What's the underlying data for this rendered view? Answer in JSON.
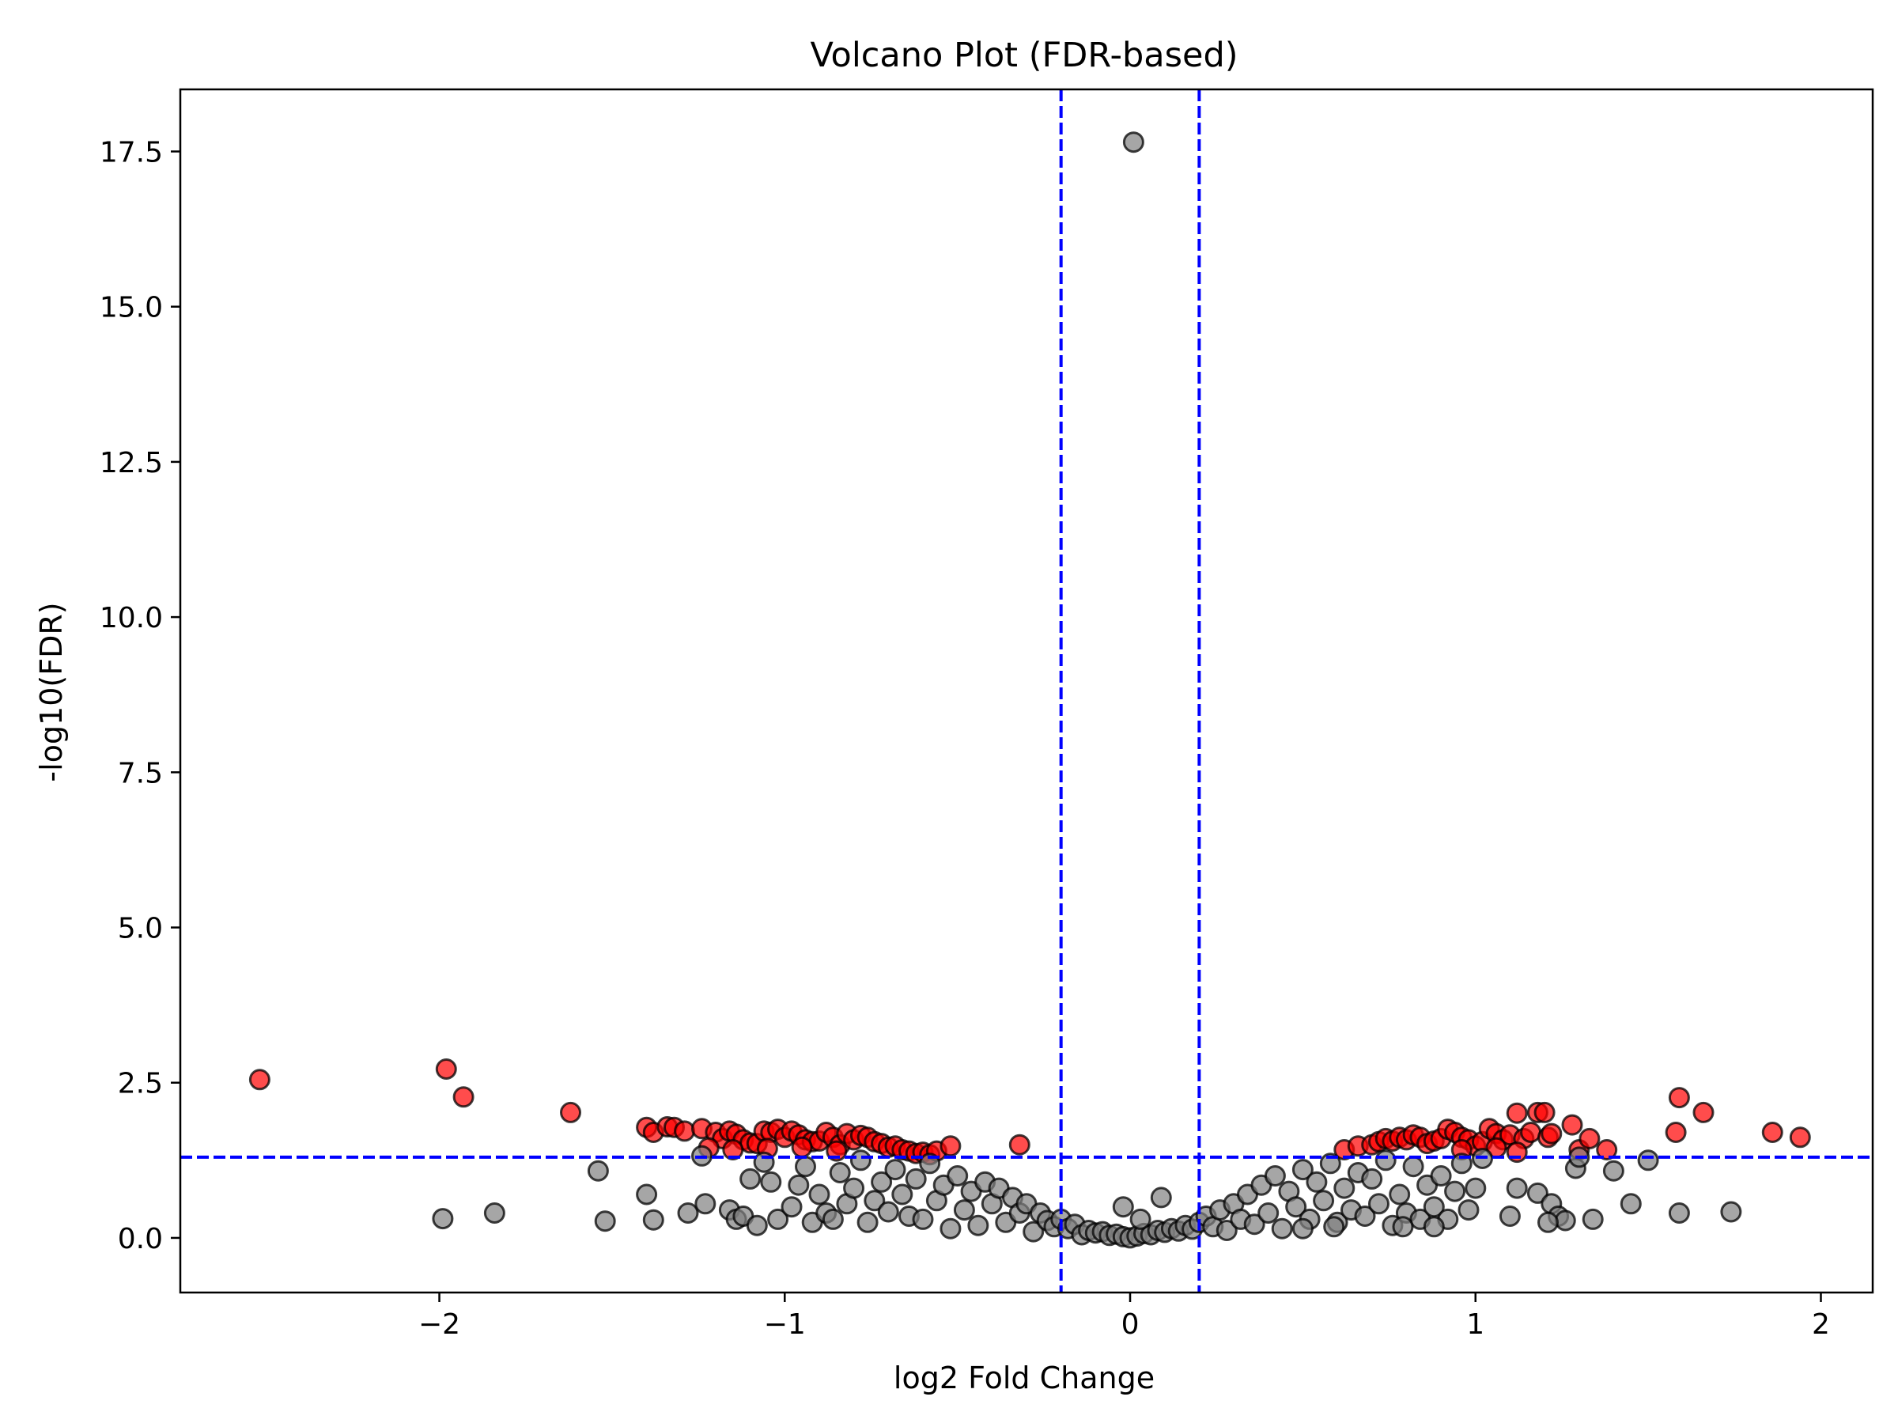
{
  "chart_data": {
    "type": "scatter",
    "title": "Volcano Plot (FDR-based)",
    "xlabel": "log2 Fold Change",
    "ylabel": "-log10(FDR)",
    "xlim": [
      -2.75,
      2.15
    ],
    "ylim": [
      -0.88,
      18.5
    ],
    "x_ticks": [
      -2,
      -1,
      0,
      1,
      2
    ],
    "x_tick_labels": [
      "−2",
      "−1",
      "0",
      "1",
      "2"
    ],
    "y_ticks": [
      0.0,
      2.5,
      5.0,
      7.5,
      10.0,
      12.5,
      15.0,
      17.5
    ],
    "y_tick_labels": [
      "0.0",
      "2.5",
      "5.0",
      "7.5",
      "10.0",
      "12.5",
      "15.0",
      "17.5"
    ],
    "grid": false,
    "legend": "none",
    "thresholds": {
      "log2fc": [
        -0.2,
        0.2
      ],
      "neg_log10_fdr": 1.3
    },
    "colors": {
      "significant": "#ff0000",
      "not_significant": "#808080",
      "threshold_line": "#0000ff",
      "marker_edge": "#000000"
    },
    "series": [
      {
        "status": "significant",
        "points": [
          [
            -2.52,
            2.55
          ],
          [
            -1.98,
            2.72
          ],
          [
            -1.93,
            2.27
          ],
          [
            -1.62,
            2.02
          ],
          [
            -1.4,
            1.78
          ],
          [
            -1.38,
            1.7
          ],
          [
            -1.34,
            1.79
          ],
          [
            -1.32,
            1.78
          ],
          [
            -1.29,
            1.72
          ],
          [
            -1.24,
            1.76
          ],
          [
            -1.2,
            1.7
          ],
          [
            -1.18,
            1.6
          ],
          [
            -1.16,
            1.72
          ],
          [
            -1.14,
            1.67
          ],
          [
            -1.12,
            1.58
          ],
          [
            -1.1,
            1.53
          ],
          [
            -1.08,
            1.52
          ],
          [
            -1.06,
            1.72
          ],
          [
            -1.04,
            1.7
          ],
          [
            -1.02,
            1.75
          ],
          [
            -1.0,
            1.62
          ],
          [
            -0.98,
            1.72
          ],
          [
            -0.96,
            1.66
          ],
          [
            -0.94,
            1.58
          ],
          [
            -0.92,
            1.55
          ],
          [
            -0.9,
            1.56
          ],
          [
            -0.88,
            1.7
          ],
          [
            -0.86,
            1.62
          ],
          [
            -0.84,
            1.5
          ],
          [
            -0.82,
            1.68
          ],
          [
            -0.8,
            1.58
          ],
          [
            -0.78,
            1.65
          ],
          [
            -0.76,
            1.62
          ],
          [
            -0.74,
            1.55
          ],
          [
            -0.72,
            1.52
          ],
          [
            -0.7,
            1.46
          ],
          [
            -0.68,
            1.48
          ],
          [
            -0.66,
            1.42
          ],
          [
            -0.64,
            1.4
          ],
          [
            -0.62,
            1.36
          ],
          [
            -0.6,
            1.38
          ],
          [
            -0.58,
            1.34
          ],
          [
            -0.56,
            1.4
          ],
          [
            -0.52,
            1.48
          ],
          [
            -1.22,
            1.45
          ],
          [
            -1.15,
            1.42
          ],
          [
            -1.05,
            1.44
          ],
          [
            -0.95,
            1.46
          ],
          [
            -0.85,
            1.4
          ],
          [
            -0.32,
            1.5
          ],
          [
            0.62,
            1.42
          ],
          [
            0.66,
            1.48
          ],
          [
            0.7,
            1.5
          ],
          [
            0.72,
            1.55
          ],
          [
            0.74,
            1.6
          ],
          [
            0.76,
            1.56
          ],
          [
            0.78,
            1.62
          ],
          [
            0.8,
            1.58
          ],
          [
            0.82,
            1.66
          ],
          [
            0.84,
            1.62
          ],
          [
            0.86,
            1.52
          ],
          [
            0.88,
            1.56
          ],
          [
            0.9,
            1.6
          ],
          [
            0.92,
            1.75
          ],
          [
            0.94,
            1.7
          ],
          [
            0.96,
            1.62
          ],
          [
            0.98,
            1.58
          ],
          [
            1.0,
            1.48
          ],
          [
            1.02,
            1.55
          ],
          [
            1.04,
            1.76
          ],
          [
            1.06,
            1.68
          ],
          [
            1.08,
            1.58
          ],
          [
            1.1,
            1.66
          ],
          [
            1.12,
            2.01
          ],
          [
            1.14,
            1.6
          ],
          [
            1.16,
            1.7
          ],
          [
            1.18,
            2.02
          ],
          [
            1.2,
            2.02
          ],
          [
            1.21,
            1.62
          ],
          [
            1.22,
            1.68
          ],
          [
            1.06,
            1.45
          ],
          [
            1.12,
            1.38
          ],
          [
            0.96,
            1.42
          ],
          [
            1.28,
            1.82
          ],
          [
            1.3,
            1.42
          ],
          [
            1.33,
            1.6
          ],
          [
            1.38,
            1.42
          ],
          [
            1.59,
            2.26
          ],
          [
            1.58,
            1.7
          ],
          [
            1.66,
            2.02
          ],
          [
            1.86,
            1.7
          ],
          [
            1.94,
            1.62
          ]
        ]
      },
      {
        "status": "not_significant",
        "points": [
          [
            0.01,
            17.65
          ],
          [
            -1.99,
            0.31
          ],
          [
            -1.84,
            0.4
          ],
          [
            -1.54,
            1.08
          ],
          [
            -1.52,
            0.27
          ],
          [
            -1.4,
            0.7
          ],
          [
            -1.38,
            0.29
          ],
          [
            -1.28,
            0.4
          ],
          [
            -1.24,
            1.32
          ],
          [
            -1.23,
            0.55
          ],
          [
            -1.16,
            0.45
          ],
          [
            -1.14,
            0.3
          ],
          [
            -1.12,
            0.35
          ],
          [
            -1.1,
            0.95
          ],
          [
            -1.08,
            0.2
          ],
          [
            -1.06,
            1.22
          ],
          [
            -1.04,
            0.9
          ],
          [
            -1.02,
            0.3
          ],
          [
            -0.98,
            0.5
          ],
          [
            -0.96,
            0.85
          ],
          [
            -0.94,
            1.15
          ],
          [
            -0.92,
            0.25
          ],
          [
            -0.9,
            0.7
          ],
          [
            -0.88,
            0.4
          ],
          [
            -0.86,
            0.3
          ],
          [
            -0.84,
            1.05
          ],
          [
            -0.82,
            0.55
          ],
          [
            -0.8,
            0.8
          ],
          [
            -0.78,
            1.25
          ],
          [
            -0.76,
            0.25
          ],
          [
            -0.74,
            0.6
          ],
          [
            -0.72,
            0.9
          ],
          [
            -0.7,
            0.42
          ],
          [
            -0.68,
            1.1
          ],
          [
            -0.66,
            0.7
          ],
          [
            -0.64,
            0.35
          ],
          [
            -0.62,
            0.95
          ],
          [
            -0.6,
            0.3
          ],
          [
            -0.58,
            1.2
          ],
          [
            -0.56,
            0.6
          ],
          [
            -0.54,
            0.85
          ],
          [
            -0.52,
            0.15
          ],
          [
            -0.5,
            1.0
          ],
          [
            -0.48,
            0.45
          ],
          [
            -0.46,
            0.75
          ],
          [
            -0.44,
            0.2
          ],
          [
            -0.42,
            0.9
          ],
          [
            -0.4,
            0.55
          ],
          [
            -0.38,
            0.8
          ],
          [
            -0.36,
            0.25
          ],
          [
            -0.34,
            0.65
          ],
          [
            -0.32,
            0.4
          ],
          [
            -0.3,
            0.55
          ],
          [
            -0.28,
            0.1
          ],
          [
            -0.26,
            0.4
          ],
          [
            -0.24,
            0.28
          ],
          [
            -0.22,
            0.18
          ],
          [
            -0.2,
            0.3
          ],
          [
            -0.18,
            0.15
          ],
          [
            -0.16,
            0.22
          ],
          [
            -0.14,
            0.05
          ],
          [
            -0.12,
            0.12
          ],
          [
            -0.1,
            0.08
          ],
          [
            -0.08,
            0.1
          ],
          [
            -0.06,
            0.04
          ],
          [
            -0.04,
            0.06
          ],
          [
            -0.02,
            0.02
          ],
          [
            0.0,
            0.0
          ],
          [
            0.02,
            0.03
          ],
          [
            0.04,
            0.07
          ],
          [
            0.06,
            0.05
          ],
          [
            0.08,
            0.12
          ],
          [
            0.1,
            0.09
          ],
          [
            0.12,
            0.15
          ],
          [
            0.14,
            0.11
          ],
          [
            0.16,
            0.2
          ],
          [
            0.18,
            0.14
          ],
          [
            0.2,
            0.25
          ],
          [
            -0.02,
            0.5
          ],
          [
            0.03,
            0.3
          ],
          [
            0.09,
            0.65
          ],
          [
            0.22,
            0.35
          ],
          [
            0.24,
            0.18
          ],
          [
            0.26,
            0.45
          ],
          [
            0.28,
            0.12
          ],
          [
            0.3,
            0.55
          ],
          [
            0.32,
            0.3
          ],
          [
            0.34,
            0.7
          ],
          [
            0.36,
            0.22
          ],
          [
            0.38,
            0.85
          ],
          [
            0.4,
            0.4
          ],
          [
            0.42,
            1.0
          ],
          [
            0.44,
            0.15
          ],
          [
            0.46,
            0.75
          ],
          [
            0.48,
            0.5
          ],
          [
            0.5,
            1.1
          ],
          [
            0.52,
            0.3
          ],
          [
            0.54,
            0.9
          ],
          [
            0.56,
            0.6
          ],
          [
            0.58,
            1.2
          ],
          [
            0.6,
            0.25
          ],
          [
            0.62,
            0.8
          ],
          [
            0.64,
            0.45
          ],
          [
            0.66,
            1.05
          ],
          [
            0.68,
            0.35
          ],
          [
            0.7,
            0.95
          ],
          [
            0.72,
            0.55
          ],
          [
            0.74,
            1.25
          ],
          [
            0.76,
            0.2
          ],
          [
            0.78,
            0.7
          ],
          [
            0.8,
            0.4
          ],
          [
            0.82,
            1.15
          ],
          [
            0.84,
            0.3
          ],
          [
            0.86,
            0.85
          ],
          [
            0.88,
            0.5
          ],
          [
            0.9,
            1.0
          ],
          [
            0.92,
            0.3
          ],
          [
            0.94,
            0.75
          ],
          [
            0.96,
            1.2
          ],
          [
            0.98,
            0.45
          ],
          [
            1.0,
            0.8
          ],
          [
            1.02,
            1.28
          ],
          [
            1.1,
            0.35
          ],
          [
            1.12,
            0.8
          ],
          [
            1.18,
            0.72
          ],
          [
            1.22,
            0.55
          ],
          [
            1.24,
            0.35
          ],
          [
            1.26,
            0.28
          ],
          [
            1.29,
            1.12
          ],
          [
            1.3,
            1.3
          ],
          [
            1.34,
            0.3
          ],
          [
            1.4,
            1.08
          ],
          [
            1.45,
            0.55
          ],
          [
            1.5,
            1.25
          ],
          [
            1.59,
            0.4
          ],
          [
            1.74,
            0.42
          ],
          [
            0.79,
            0.18
          ],
          [
            0.88,
            0.18
          ],
          [
            1.21,
            0.25
          ],
          [
            0.59,
            0.18
          ],
          [
            0.5,
            0.15
          ]
        ]
      }
    ]
  }
}
